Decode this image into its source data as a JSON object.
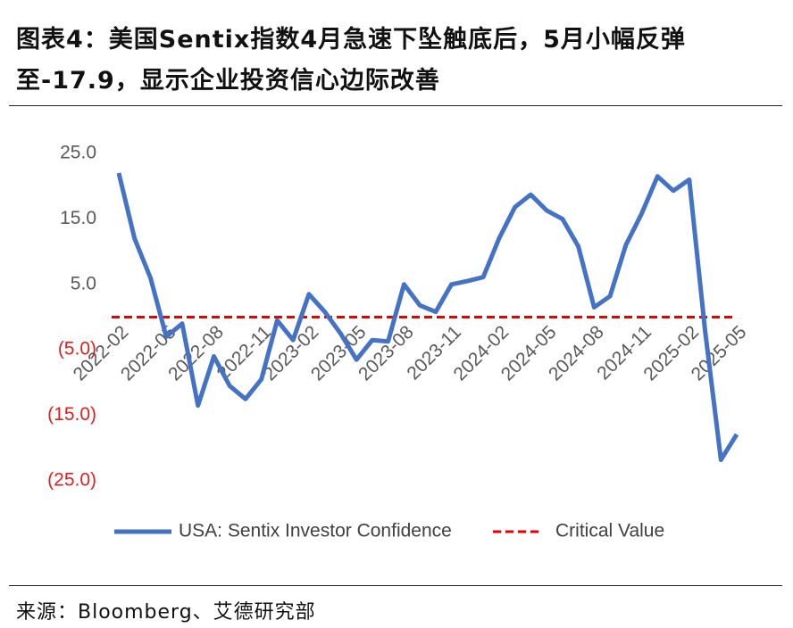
{
  "chart_data": {
    "type": "line",
    "title": "图表4：美国Sentix指数4月急速下坠触底后，5月小幅反弹至-17.9，显示企业投资信心边际改善",
    "source": "来源：Bloomberg、艾德研究部",
    "categories": [
      "2022-02",
      null,
      null,
      "2022-05",
      null,
      null,
      "2022-08",
      null,
      null,
      "2022-11",
      null,
      null,
      "2023-02",
      null,
      null,
      "2023-05",
      null,
      null,
      "2023-08",
      null,
      null,
      "2023-11",
      null,
      null,
      "2024-02",
      null,
      null,
      "2024-05",
      null,
      null,
      "2024-08",
      null,
      null,
      "2024-11",
      null,
      null,
      "2025-02",
      null,
      null,
      "2025-05"
    ],
    "series": [
      {
        "name": "USA: Sentix Investor Confidence",
        "color": "#4472c4",
        "values": [
          22,
          12,
          6,
          -3,
          -1,
          -13.5,
          -6,
          -10.5,
          -12.5,
          -9.5,
          -0.5,
          -3.5,
          3.5,
          0.8,
          -2.5,
          -6.5,
          -3.5,
          -3.7,
          5,
          1.8,
          0.8,
          5,
          5.5,
          6.1,
          12,
          16.8,
          18.7,
          16.3,
          15,
          10.8,
          1.5,
          3.2,
          11,
          15.8,
          21.5,
          19.3,
          21,
          -2,
          -21.8,
          -17.9
        ]
      }
    ],
    "reference_line": {
      "name": "Critical Value",
      "value": 0,
      "color": "#e00000"
    },
    "ylim": [
      -25,
      25
    ],
    "yticks": [
      {
        "value": 25,
        "label": "25.0"
      },
      {
        "value": 15,
        "label": "15.0"
      },
      {
        "value": 5,
        "label": "5.0"
      },
      {
        "value": -5,
        "label": "(5.0)"
      },
      {
        "value": -15,
        "label": "(15.0)"
      },
      {
        "value": -25,
        "label": "(25.0)"
      }
    ],
    "grid": false,
    "legend": "bottom"
  }
}
